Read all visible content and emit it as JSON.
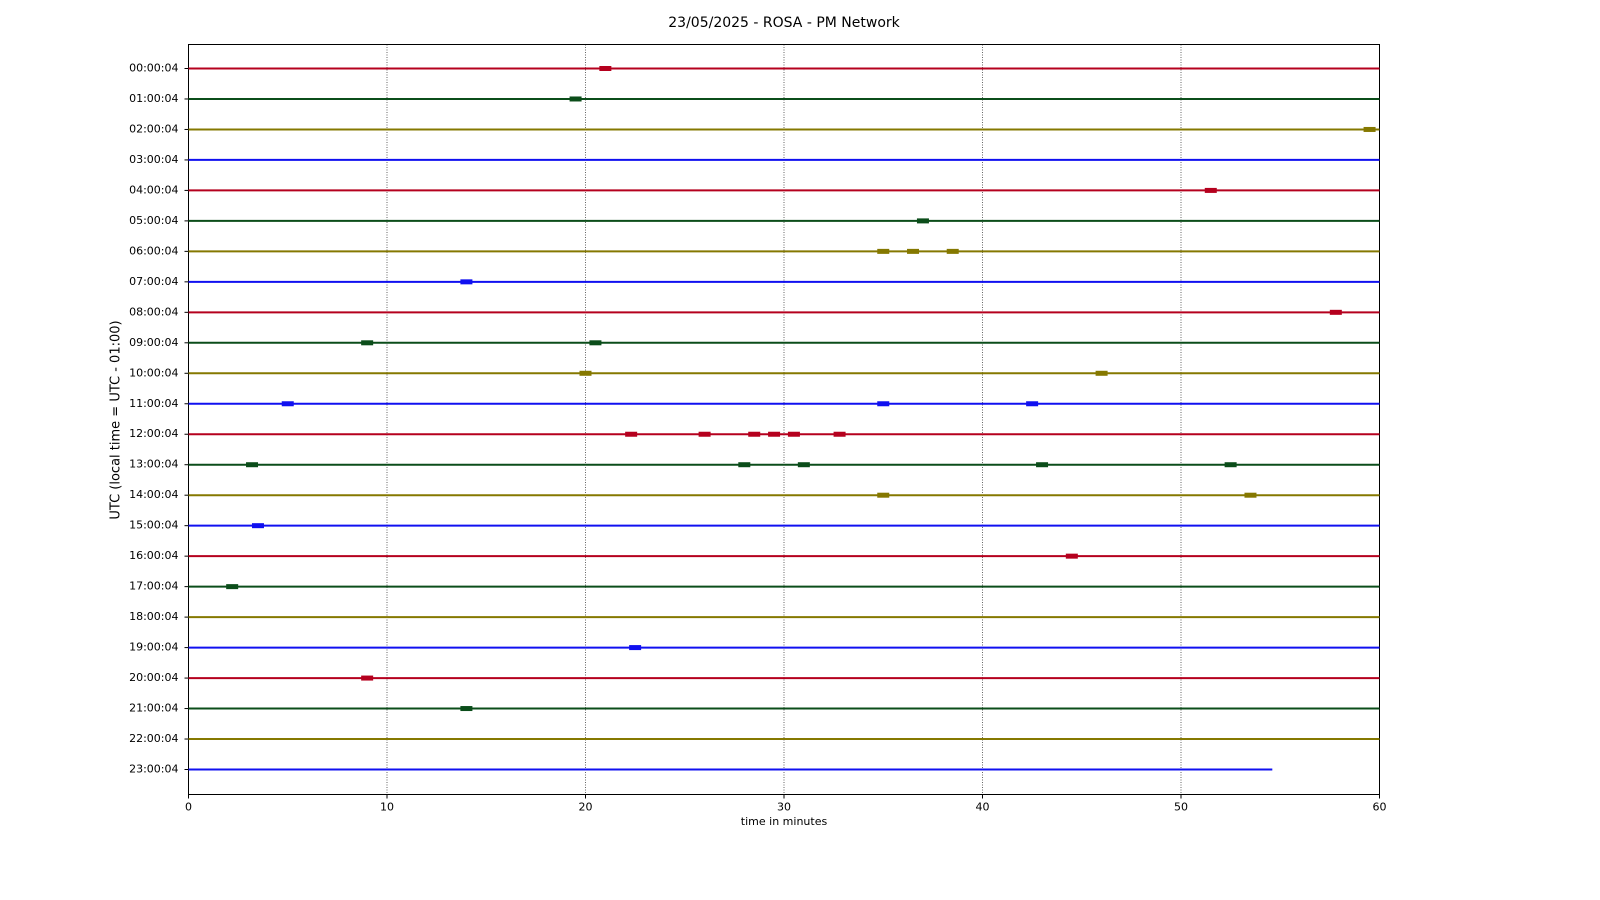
{
  "chart_data": {
    "type": "helicorder",
    "title": "23/05/2025 - ROSA - PM Network",
    "x_label": "time in minutes",
    "y_label": "UTC (local time = UTC - 01:00)",
    "categories": [
      "00:00:04",
      "01:00:04",
      "02:00:04",
      "03:00:04",
      "04:00:04",
      "05:00:04",
      "06:00:04",
      "07:00:04",
      "08:00:04",
      "09:00:04",
      "10:00:04",
      "11:00:04",
      "12:00:04",
      "13:00:04",
      "14:00:04",
      "15:00:04",
      "16:00:04",
      "17:00:04",
      "18:00:04",
      "19:00:04",
      "20:00:04",
      "21:00:04",
      "22:00:04",
      "23:00:04"
    ],
    "colors": [
      "#b5001e",
      "#0b4d1a",
      "#857800",
      "#1010f0"
    ],
    "trace_end": [
      60,
      60,
      60,
      60,
      60,
      60,
      60,
      60,
      60,
      60,
      60,
      60,
      60,
      60,
      60,
      60,
      60,
      60,
      60,
      60,
      60,
      60,
      60,
      54.6
    ],
    "events": [
      [
        21
      ],
      [
        19.5
      ],
      [
        59.5
      ],
      [],
      [
        51.5
      ],
      [
        37
      ],
      [
        35,
        36.5,
        38.5
      ],
      [
        14
      ],
      [
        57.8
      ],
      [
        9,
        20.5
      ],
      [
        20,
        46
      ],
      [
        5,
        35,
        42.5
      ],
      [
        22.3,
        26,
        28.5,
        29.5,
        30.5,
        32.8
      ],
      [
        3.2,
        28,
        31,
        43,
        52.5
      ],
      [
        35,
        53.5
      ],
      [
        3.5
      ],
      [
        44.5
      ],
      [
        2.2
      ],
      [],
      [
        22.5
      ],
      [
        9
      ],
      [
        14
      ],
      [],
      []
    ],
    "xlim": [
      0,
      60
    ],
    "xticks": [
      0,
      10,
      20,
      30,
      40,
      50,
      60
    ],
    "grid": true
  }
}
